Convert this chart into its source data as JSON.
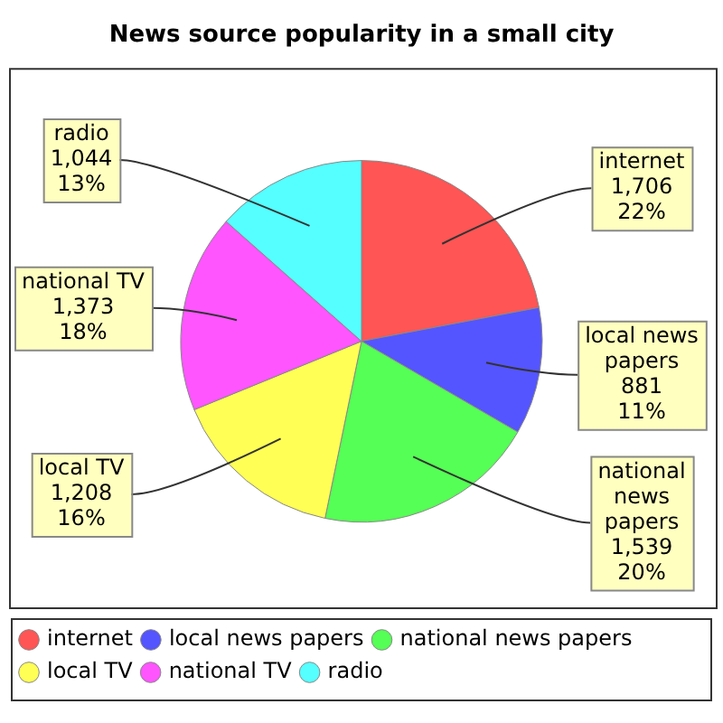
{
  "chart_data": {
    "type": "pie",
    "title": "News source popularity in a small city",
    "categories": [
      "internet",
      "local news papers",
      "national news papers",
      "local TV",
      "national TV",
      "radio"
    ],
    "values": [
      1706,
      881,
      1539,
      1208,
      1373,
      1044
    ],
    "colors": [
      "#ff5555",
      "#5555ff",
      "#55ff55",
      "#ffff55",
      "#ff55ff",
      "#55ffff"
    ],
    "value_labels": [
      "1,706\n22%",
      "881\n11%",
      "1,539\n20%",
      "1,208\n16%",
      "1,373\n18%",
      "1,044\n13%"
    ],
    "legend": "bottom"
  }
}
